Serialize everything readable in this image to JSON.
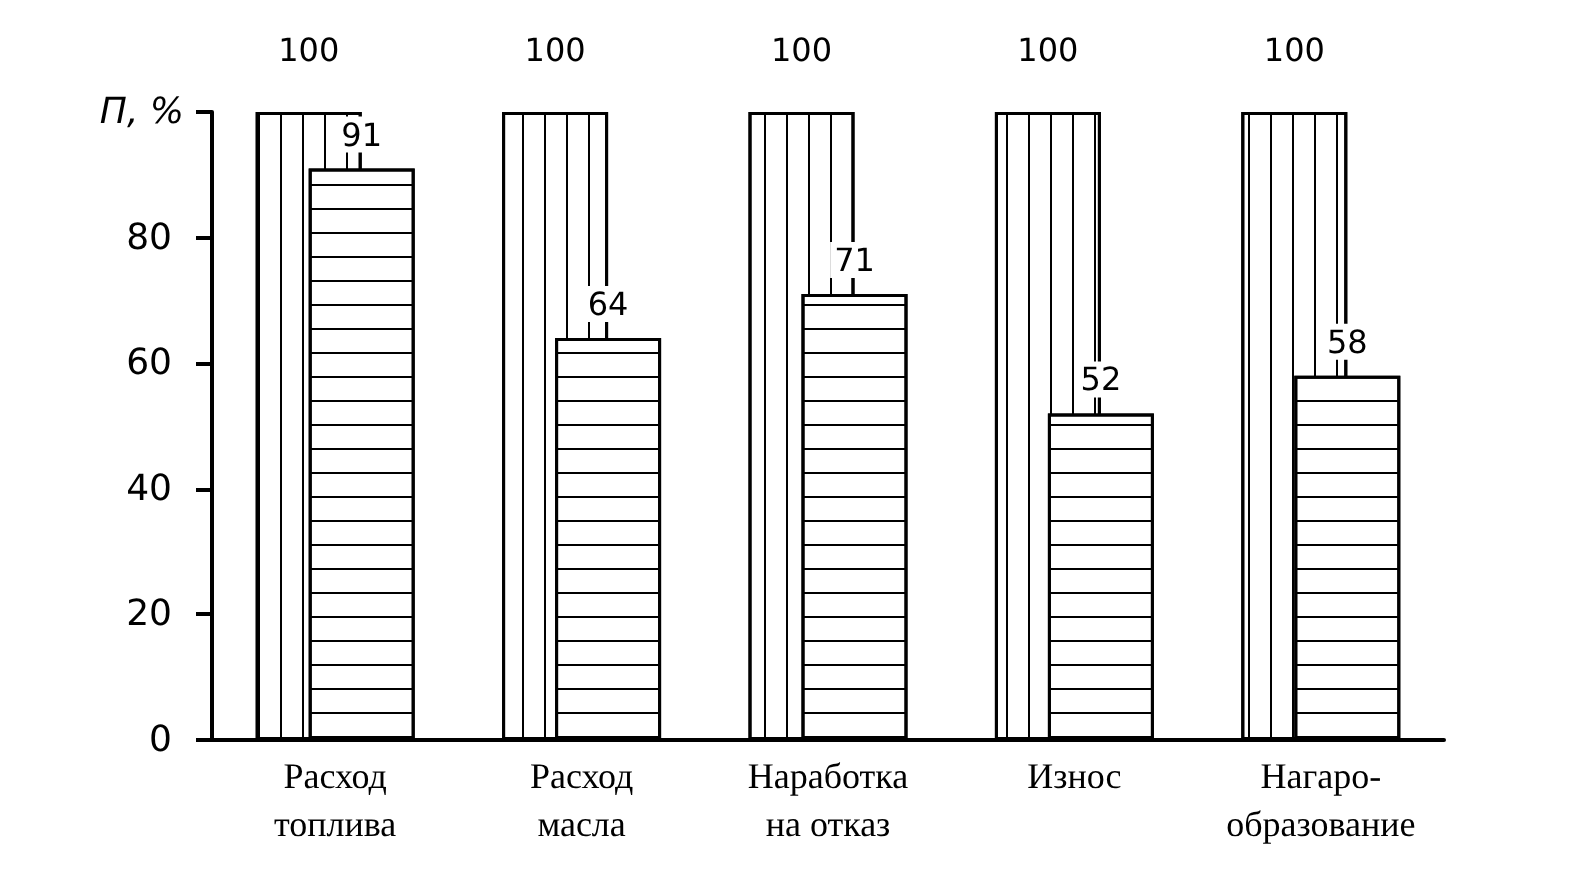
{
  "chart_data": {
    "type": "bar",
    "ylabel": "П, %",
    "categories": [
      "Расход\nтоплива",
      "Расход\nмасла",
      "Наработка\nна отказ",
      "Износ",
      "Нагаро-\nобразование"
    ],
    "series": [
      {
        "color": "#ffffff",
        "values": [
          100,
          100,
          100,
          100,
          100
        ]
      },
      {
        "color": "#ffffff",
        "values": [
          91,
          64,
          71,
          52,
          58
        ]
      }
    ],
    "ylim": [
      0,
      100
    ],
    "yticks": [
      0,
      20,
      40,
      60,
      80,
      {
        "value": 100,
        "label": null
      }
    ],
    "data_labels": true
  }
}
